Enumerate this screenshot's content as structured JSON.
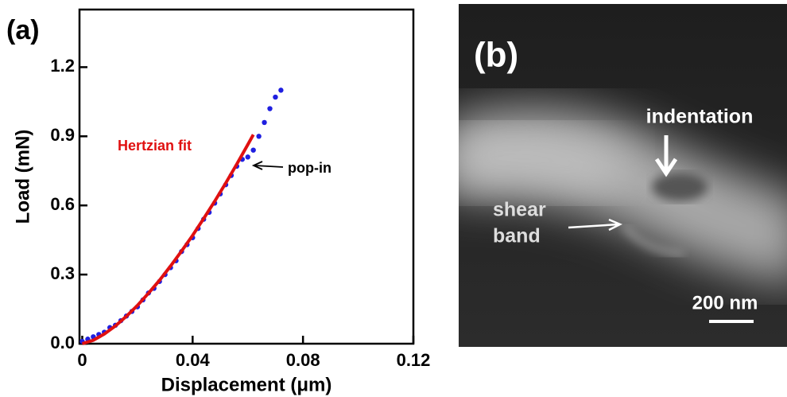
{
  "chart_data": {
    "type": "scatter",
    "panel_label": "(a)",
    "x_label": "Displacement (μm)",
    "y_label": "Load (mN)",
    "xlim": [
      -0.001,
      0.12
    ],
    "ylim": [
      0,
      1.45
    ],
    "xticks": [
      0,
      0.04,
      0.08,
      0.12
    ],
    "yticks": [
      {
        "value": 0,
        "label": "0.0"
      },
      0.3,
      0.6,
      0.9,
      1.2
    ],
    "series": [
      {
        "color": "#1f1fe0",
        "style": "markers",
        "x": [
          0,
          0.002,
          0.004,
          0.006,
          0.008,
          0.01,
          0.012,
          0.014,
          0.016,
          0.018,
          0.02,
          0.022,
          0.024,
          0.026,
          0.028,
          0.03,
          0.032,
          0.034,
          0.036,
          0.038,
          0.04,
          0.042,
          0.044,
          0.046,
          0.048,
          0.05,
          0.052,
          0.054,
          0.056,
          0.058,
          0.06,
          0.062,
          0.064,
          0.066,
          0.068,
          0.07,
          0.072
        ],
        "values": [
          0.01,
          0.02,
          0.03,
          0.04,
          0.05,
          0.07,
          0.08,
          0.1,
          0.12,
          0.14,
          0.16,
          0.19,
          0.22,
          0.24,
          0.27,
          0.3,
          0.33,
          0.36,
          0.4,
          0.43,
          0.46,
          0.5,
          0.54,
          0.57,
          0.61,
          0.65,
          0.69,
          0.73,
          0.77,
          0.8,
          0.81,
          0.84,
          0.9,
          0.96,
          1.02,
          1.07,
          1.1
        ]
      },
      {
        "name": "Hertzian fit",
        "color": "#e01010",
        "style": "line",
        "x": [
          0,
          0.004,
          0.008,
          0.012,
          0.016,
          0.02,
          0.024,
          0.028,
          0.032,
          0.036,
          0.04,
          0.044,
          0.048,
          0.052,
          0.056,
          0.06,
          0.062
        ],
        "values": [
          0,
          0.015,
          0.042,
          0.077,
          0.119,
          0.166,
          0.219,
          0.275,
          0.337,
          0.402,
          0.47,
          0.543,
          0.618,
          0.697,
          0.779,
          0.864,
          0.907
        ]
      }
    ],
    "annotations": [
      "pop-in"
    ]
  },
  "panel_b": {
    "label": "(b)",
    "indentation": "indentation",
    "shear_band": [
      "shear",
      "band"
    ],
    "scale_bar": "200 nm"
  }
}
